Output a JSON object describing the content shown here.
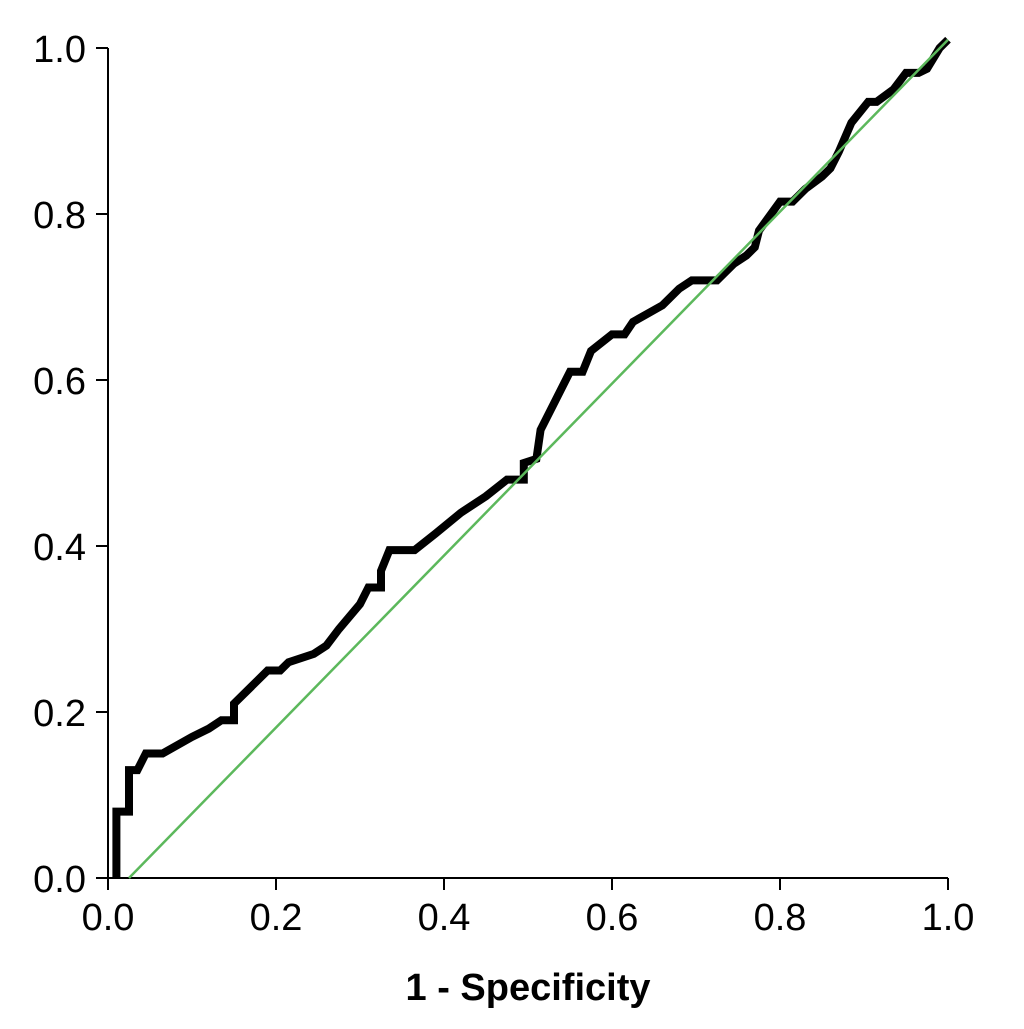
{
  "chart_data": {
    "type": "line",
    "title": "",
    "xlabel": "1 - Specificity",
    "ylabel": "",
    "xlim": [
      0.0,
      1.0
    ],
    "ylim": [
      0.0,
      1.0
    ],
    "x_ticks": [
      "0.0",
      "0.2",
      "0.4",
      "0.6",
      "0.8",
      "1.0"
    ],
    "y_ticks": [
      "0.0",
      "0.2",
      "0.4",
      "0.6",
      "0.8",
      "1.0"
    ],
    "grid": false,
    "legend": "none",
    "series": [
      {
        "role": "roc-curve",
        "color": "#000000",
        "points": [
          [
            0.01,
            0.0
          ],
          [
            0.01,
            0.08
          ],
          [
            0.025,
            0.08
          ],
          [
            0.025,
            0.13
          ],
          [
            0.035,
            0.13
          ],
          [
            0.045,
            0.15
          ],
          [
            0.065,
            0.15
          ],
          [
            0.1,
            0.17
          ],
          [
            0.12,
            0.18
          ],
          [
            0.135,
            0.19
          ],
          [
            0.15,
            0.19
          ],
          [
            0.15,
            0.21
          ],
          [
            0.17,
            0.23
          ],
          [
            0.18,
            0.24
          ],
          [
            0.19,
            0.25
          ],
          [
            0.205,
            0.25
          ],
          [
            0.215,
            0.26
          ],
          [
            0.245,
            0.27
          ],
          [
            0.26,
            0.28
          ],
          [
            0.275,
            0.3
          ],
          [
            0.3,
            0.33
          ],
          [
            0.31,
            0.35
          ],
          [
            0.325,
            0.35
          ],
          [
            0.325,
            0.37
          ],
          [
            0.335,
            0.395
          ],
          [
            0.365,
            0.395
          ],
          [
            0.39,
            0.415
          ],
          [
            0.42,
            0.44
          ],
          [
            0.45,
            0.46
          ],
          [
            0.475,
            0.48
          ],
          [
            0.495,
            0.48
          ],
          [
            0.495,
            0.5
          ],
          [
            0.51,
            0.505
          ],
          [
            0.515,
            0.54
          ],
          [
            0.53,
            0.57
          ],
          [
            0.55,
            0.61
          ],
          [
            0.565,
            0.61
          ],
          [
            0.575,
            0.635
          ],
          [
            0.6,
            0.655
          ],
          [
            0.615,
            0.655
          ],
          [
            0.625,
            0.67
          ],
          [
            0.66,
            0.69
          ],
          [
            0.68,
            0.71
          ],
          [
            0.695,
            0.72
          ],
          [
            0.72,
            0.72
          ],
          [
            0.725,
            0.72
          ],
          [
            0.745,
            0.74
          ],
          [
            0.76,
            0.75
          ],
          [
            0.77,
            0.76
          ],
          [
            0.775,
            0.78
          ],
          [
            0.8,
            0.815
          ],
          [
            0.815,
            0.815
          ],
          [
            0.83,
            0.83
          ],
          [
            0.85,
            0.845
          ],
          [
            0.86,
            0.855
          ],
          [
            0.87,
            0.875
          ],
          [
            0.885,
            0.91
          ],
          [
            0.905,
            0.935
          ],
          [
            0.915,
            0.935
          ],
          [
            0.935,
            0.95
          ],
          [
            0.95,
            0.97
          ],
          [
            0.965,
            0.97
          ],
          [
            0.975,
            0.975
          ],
          [
            0.99,
            1.0
          ],
          [
            1.0,
            1.01
          ]
        ]
      },
      {
        "role": "reference-line",
        "color": "#5cb85c",
        "points": [
          [
            0.025,
            0.0
          ],
          [
            1.0,
            1.01
          ]
        ]
      }
    ]
  }
}
